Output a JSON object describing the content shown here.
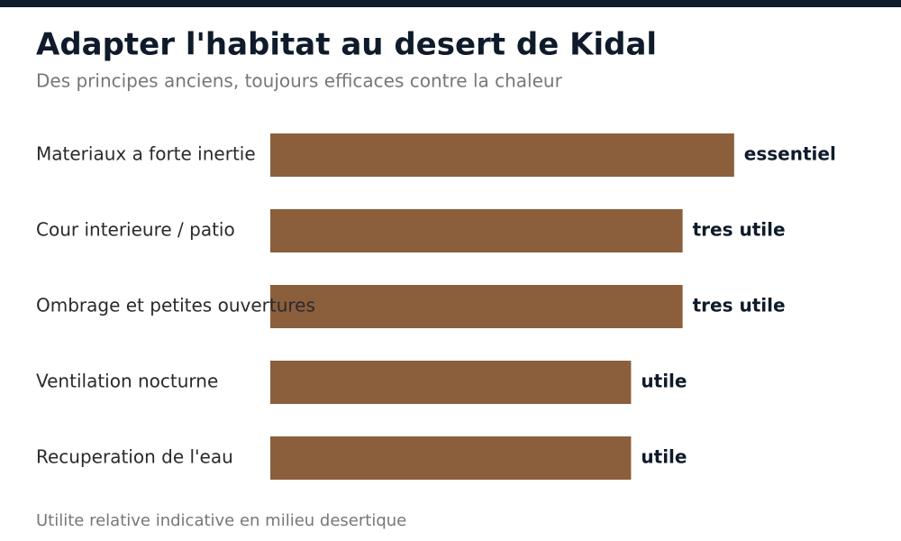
{
  "chart_data": {
    "type": "bar",
    "orientation": "horizontal",
    "title": "Adapter l'habitat au desert de Kidal",
    "subtitle": "Des principes anciens, toujours efficaces contre la chaleur",
    "categories": [
      "Materiaux a forte inertie",
      "Cour interieure / patio",
      "Ombrage et petites ouvertures",
      "Ventilation nocturne",
      "Recuperation de l'eau"
    ],
    "values": [
      9,
      8,
      8,
      7,
      7
    ],
    "value_labels": [
      "essentiel",
      "tres utile",
      "tres utile",
      "utile",
      "utile"
    ],
    "color": "#8b5e3c",
    "xlim": [
      0,
      10
    ],
    "note": "Utilite relative indicative en milieu desertique"
  }
}
